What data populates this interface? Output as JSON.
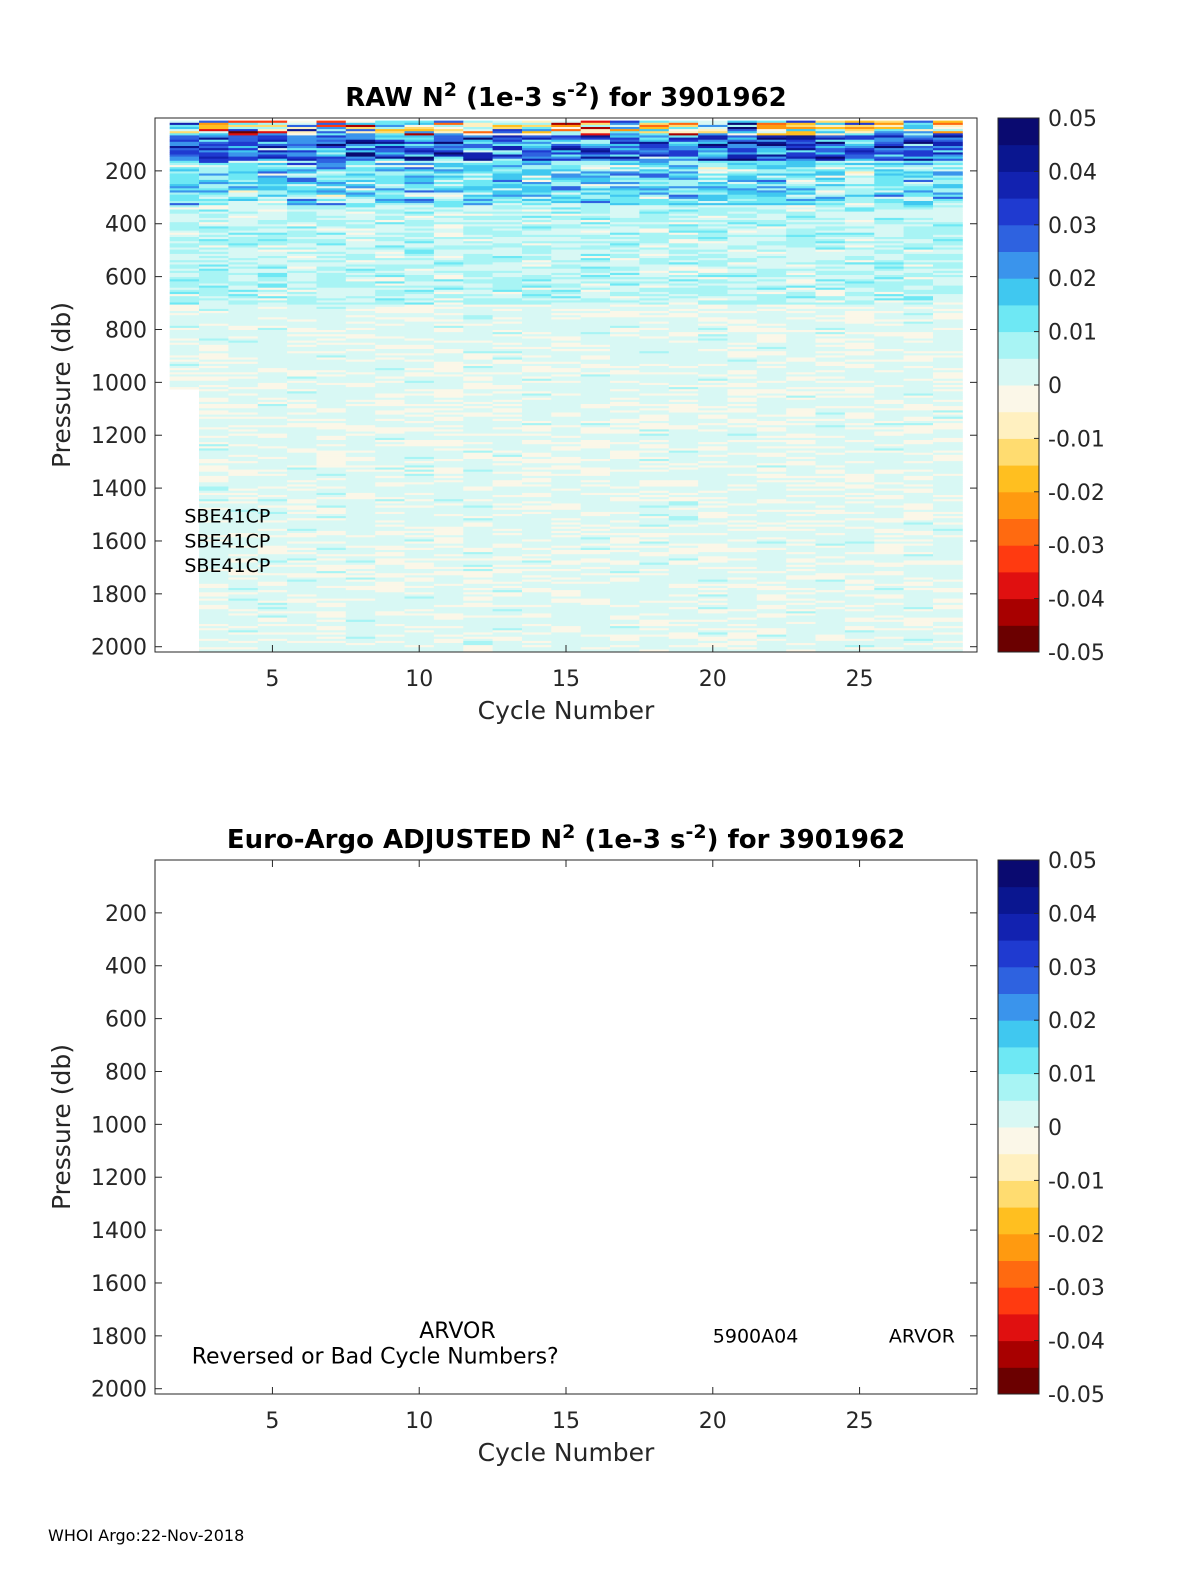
{
  "footer": "WHOI Argo:22-Nov-2018",
  "colormap": [
    "#6b0000",
    "#a80000",
    "#e01010",
    "#ff3a10",
    "#ff6a10",
    "#ff9a10",
    "#ffbf20",
    "#ffdc70",
    "#fff0c0",
    "#fbf7e8",
    "#d8f8f4",
    "#a8f4f4",
    "#6ee8f4",
    "#40c8f0",
    "#3a94ec",
    "#2e62e0",
    "#1f3ad0",
    "#1222b0",
    "#0a1690",
    "#0a0a70"
  ],
  "chart_data": [
    {
      "type": "heatmap",
      "title_parts": {
        "pre": "RAW N",
        "sup1": "2",
        "mid": " (1e-3 s",
        "sup2": "-2",
        "post": ") for 3901962"
      },
      "xlabel": "Cycle Number",
      "ylabel": "Pressure (db)",
      "xlim": [
        1,
        29
      ],
      "ylim": [
        0,
        2020
      ],
      "y_reversed": true,
      "xticks": [
        5,
        10,
        15,
        20,
        25
      ],
      "yticks": [
        200,
        400,
        600,
        800,
        1000,
        1200,
        1400,
        1600,
        1800,
        2000
      ],
      "cycles": [
        2,
        28
      ],
      "clim": [
        -0.05,
        0.05
      ],
      "colorbar_ticks": [
        "0.05",
        "0.04",
        "0.03",
        "0.02",
        "0.01",
        "0",
        "-0.01",
        "-0.02",
        "-0.03",
        "-0.04",
        "-0.05"
      ],
      "annotations": [
        {
          "text": "SBE41CP",
          "x": 2.0,
          "y": 1530
        },
        {
          "text": "SBE41CP",
          "x": 2.0,
          "y": 1625
        },
        {
          "text": "SBE41CP",
          "x": 2.0,
          "y": 1718
        }
      ]
    },
    {
      "type": "heatmap",
      "title_parts": {
        "pre": "Euro-Argo  ADJUSTED N",
        "sup1": "2",
        "mid": " (1e-3 s",
        "sup2": "-2",
        "post": ") for 3901962"
      },
      "xlabel": "Cycle Number",
      "ylabel": "Pressure (db)",
      "xlim": [
        1,
        29
      ],
      "ylim": [
        0,
        2020
      ],
      "y_reversed": true,
      "xticks": [
        5,
        10,
        15,
        20,
        25
      ],
      "yticks": [
        200,
        400,
        600,
        800,
        1000,
        1200,
        1400,
        1600,
        1800,
        2000
      ],
      "clim": [
        -0.05,
        0.05
      ],
      "colorbar_ticks": [
        "0.05",
        "0.04",
        "0.03",
        "0.02",
        "0.01",
        "0",
        "-0.01",
        "-0.02",
        "-0.03",
        "-0.04",
        "-0.05"
      ],
      "annotations": [
        {
          "text": "ARVOR",
          "x": 10.0,
          "y": 1808,
          "size": 22
        },
        {
          "text": "Reversed or Bad Cycle Numbers?",
          "x": 2.25,
          "y": 1905,
          "size": 22
        },
        {
          "text": "5900A04",
          "x": 20.0,
          "y": 1825,
          "size": 19
        },
        {
          "text": "ARVOR",
          "x": 26.0,
          "y": 1825,
          "size": 19
        }
      ]
    }
  ]
}
